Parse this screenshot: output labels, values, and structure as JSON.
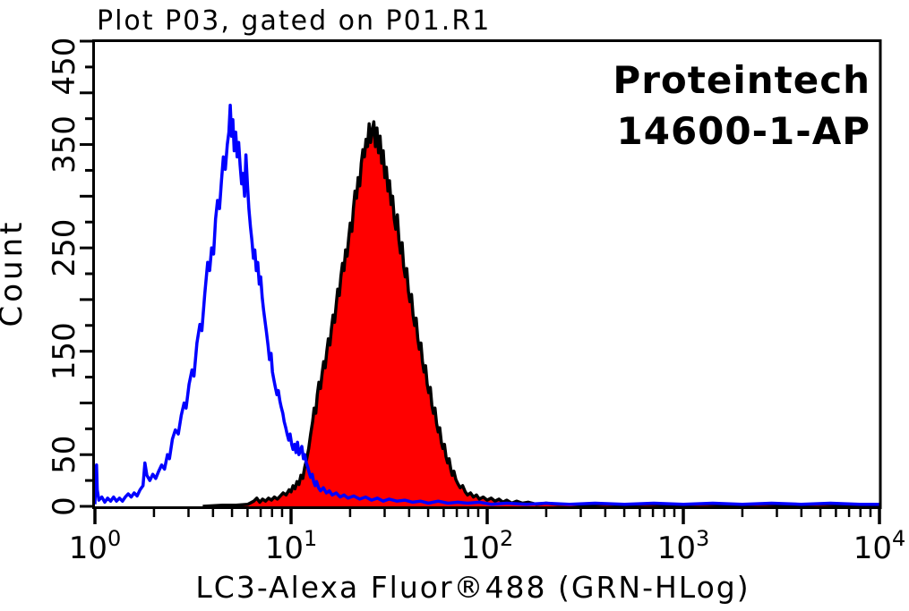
{
  "title": "Plot P03, gated on P01.R1",
  "annotation": {
    "line1": "Proteintech",
    "line2": "14600-1-AP"
  },
  "colors": {
    "text": "#000000",
    "frame": "#000000",
    "background": "#ffffff",
    "control_curve": "#0000ff",
    "sample_fill": "#ff0000",
    "sample_outline": "#000000"
  },
  "chart_data": {
    "type": "area",
    "title": "Plot P03, gated on P01.R1",
    "xlabel": "LC3-Alexa Fluor®488 (GRN-HLog)",
    "ylabel": "Count",
    "x_scale": "log10",
    "xlim": [
      1,
      10000
    ],
    "ylim": [
      0,
      450
    ],
    "x_decades": 4,
    "x_tick_base": "10",
    "x_tick_exponents": [
      0,
      1,
      2,
      3,
      4
    ],
    "y_minor_step": 25,
    "y_major_step": 50,
    "y_tick_labels": [
      0,
      50,
      150,
      250,
      350,
      450
    ],
    "grid": false,
    "legend": "none",
    "series": [
      {
        "name": "red filled histogram (14600-1-AP stained)",
        "style": "filled",
        "fill": "#ff0000",
        "color": "#000000",
        "points": [
          [
            0.55,
            0
          ],
          [
            0.65,
            1
          ],
          [
            0.72,
            1
          ],
          [
            0.78,
            2
          ],
          [
            0.81,
            5
          ],
          [
            0.825,
            8
          ],
          [
            0.84,
            4
          ],
          [
            0.855,
            7
          ],
          [
            0.87,
            5
          ],
          [
            0.885,
            8
          ],
          [
            0.9,
            6
          ],
          [
            0.915,
            9
          ],
          [
            0.93,
            7
          ],
          [
            0.945,
            10
          ],
          [
            0.96,
            13
          ],
          [
            0.975,
            11
          ],
          [
            0.99,
            16
          ],
          [
            1.0,
            14
          ],
          [
            1.01,
            20
          ],
          [
            1.02,
            17
          ],
          [
            1.03,
            24
          ],
          [
            1.04,
            21
          ],
          [
            1.05,
            30
          ],
          [
            1.06,
            27
          ],
          [
            1.07,
            38
          ],
          [
            1.08,
            46
          ],
          [
            1.09,
            56
          ],
          [
            1.1,
            70
          ],
          [
            1.11,
            82
          ],
          [
            1.118,
            95
          ],
          [
            1.126,
            90
          ],
          [
            1.134,
            108
          ],
          [
            1.142,
            120
          ],
          [
            1.15,
            114
          ],
          [
            1.158,
            128
          ],
          [
            1.166,
            140
          ],
          [
            1.174,
            134
          ],
          [
            1.182,
            150
          ],
          [
            1.19,
            162
          ],
          [
            1.198,
            156
          ],
          [
            1.206,
            172
          ],
          [
            1.214,
            185
          ],
          [
            1.222,
            178
          ],
          [
            1.23,
            195
          ],
          [
            1.238,
            210
          ],
          [
            1.246,
            204
          ],
          [
            1.254,
            222
          ],
          [
            1.262,
            235
          ],
          [
            1.27,
            228
          ],
          [
            1.278,
            248
          ],
          [
            1.286,
            242
          ],
          [
            1.294,
            260
          ],
          [
            1.302,
            274
          ],
          [
            1.31,
            266
          ],
          [
            1.318,
            288
          ],
          [
            1.326,
            305
          ],
          [
            1.334,
            298
          ],
          [
            1.342,
            318
          ],
          [
            1.35,
            310
          ],
          [
            1.358,
            332
          ],
          [
            1.366,
            345
          ],
          [
            1.374,
            338
          ],
          [
            1.382,
            355
          ],
          [
            1.39,
            348
          ],
          [
            1.398,
            370
          ],
          [
            1.406,
            352
          ],
          [
            1.414,
            364
          ],
          [
            1.422,
            372
          ],
          [
            1.43,
            348
          ],
          [
            1.438,
            366
          ],
          [
            1.446,
            342
          ],
          [
            1.454,
            358
          ],
          [
            1.462,
            332
          ],
          [
            1.47,
            344
          ],
          [
            1.478,
            318
          ],
          [
            1.486,
            328
          ],
          [
            1.494,
            305
          ],
          [
            1.502,
            315
          ],
          [
            1.51,
            292
          ],
          [
            1.518,
            300
          ],
          [
            1.526,
            278
          ],
          [
            1.534,
            268
          ],
          [
            1.542,
            282
          ],
          [
            1.55,
            258
          ],
          [
            1.558,
            245
          ],
          [
            1.566,
            255
          ],
          [
            1.574,
            232
          ],
          [
            1.582,
            222
          ],
          [
            1.59,
            230
          ],
          [
            1.598,
            208
          ],
          [
            1.606,
            198
          ],
          [
            1.614,
            205
          ],
          [
            1.622,
            185
          ],
          [
            1.63,
            175
          ],
          [
            1.638,
            182
          ],
          [
            1.646,
            162
          ],
          [
            1.654,
            152
          ],
          [
            1.662,
            158
          ],
          [
            1.67,
            140
          ],
          [
            1.678,
            130
          ],
          [
            1.686,
            136
          ],
          [
            1.694,
            118
          ],
          [
            1.702,
            110
          ],
          [
            1.71,
            115
          ],
          [
            1.718,
            98
          ],
          [
            1.726,
            90
          ],
          [
            1.734,
            95
          ],
          [
            1.742,
            80
          ],
          [
            1.75,
            72
          ],
          [
            1.758,
            76
          ],
          [
            1.766,
            62
          ],
          [
            1.774,
            56
          ],
          [
            1.782,
            60
          ],
          [
            1.79,
            48
          ],
          [
            1.798,
            42
          ],
          [
            1.806,
            46
          ],
          [
            1.814,
            36
          ],
          [
            1.822,
            30
          ],
          [
            1.83,
            34
          ],
          [
            1.84,
            26
          ],
          [
            1.85,
            22
          ],
          [
            1.862,
            18
          ],
          [
            1.875,
            20
          ],
          [
            1.888,
            14
          ],
          [
            1.9,
            11
          ],
          [
            1.915,
            13
          ],
          [
            1.93,
            9
          ],
          [
            1.945,
            11
          ],
          [
            1.96,
            7
          ],
          [
            1.98,
            9
          ],
          [
            2.0,
            6
          ],
          [
            2.02,
            8
          ],
          [
            2.04,
            5
          ],
          [
            2.06,
            7
          ],
          [
            2.08,
            4
          ],
          [
            2.1,
            6
          ],
          [
            2.125,
            3
          ],
          [
            2.15,
            5
          ],
          [
            2.18,
            3
          ],
          [
            2.21,
            4
          ],
          [
            2.25,
            2
          ],
          [
            2.3,
            3
          ],
          [
            2.36,
            2
          ],
          [
            2.43,
            2
          ],
          [
            2.5,
            1
          ],
          [
            2.6,
            2
          ],
          [
            2.7,
            1
          ],
          [
            2.82,
            2
          ],
          [
            2.95,
            1
          ],
          [
            3.1,
            2
          ],
          [
            3.25,
            1
          ],
          [
            3.4,
            2
          ],
          [
            3.55,
            1
          ],
          [
            3.7,
            2
          ],
          [
            3.85,
            1
          ],
          [
            4.0,
            1
          ]
        ]
      },
      {
        "name": "blue outline histogram (control)",
        "style": "line",
        "color": "#0000ff",
        "points": [
          [
            0.0,
            2
          ],
          [
            0.004,
            30
          ],
          [
            0.008,
            40
          ],
          [
            0.012,
            16
          ],
          [
            0.02,
            6
          ],
          [
            0.035,
            9
          ],
          [
            0.05,
            4
          ],
          [
            0.065,
            8
          ],
          [
            0.08,
            5
          ],
          [
            0.095,
            9
          ],
          [
            0.11,
            5
          ],
          [
            0.125,
            8
          ],
          [
            0.14,
            5
          ],
          [
            0.155,
            9
          ],
          [
            0.17,
            12
          ],
          [
            0.185,
            9
          ],
          [
            0.2,
            13
          ],
          [
            0.215,
            10
          ],
          [
            0.23,
            16
          ],
          [
            0.245,
            20
          ],
          [
            0.255,
            42
          ],
          [
            0.265,
            30
          ],
          [
            0.28,
            25
          ],
          [
            0.295,
            31
          ],
          [
            0.31,
            27
          ],
          [
            0.325,
            34
          ],
          [
            0.34,
            40
          ],
          [
            0.355,
            36
          ],
          [
            0.37,
            50
          ],
          [
            0.38,
            46
          ],
          [
            0.395,
            65
          ],
          [
            0.41,
            74
          ],
          [
            0.425,
            70
          ],
          [
            0.44,
            88
          ],
          [
            0.455,
            100
          ],
          [
            0.465,
            95
          ],
          [
            0.48,
            118
          ],
          [
            0.495,
            132
          ],
          [
            0.505,
            126
          ],
          [
            0.52,
            158
          ],
          [
            0.535,
            176
          ],
          [
            0.545,
            170
          ],
          [
            0.56,
            205
          ],
          [
            0.575,
            236
          ],
          [
            0.585,
            228
          ],
          [
            0.595,
            250
          ],
          [
            0.605,
            244
          ],
          [
            0.615,
            278
          ],
          [
            0.625,
            296
          ],
          [
            0.635,
            288
          ],
          [
            0.645,
            315
          ],
          [
            0.655,
            338
          ],
          [
            0.665,
            326
          ],
          [
            0.675,
            350
          ],
          [
            0.683,
            362
          ],
          [
            0.69,
            388
          ],
          [
            0.697,
            358
          ],
          [
            0.703,
            374
          ],
          [
            0.71,
            344
          ],
          [
            0.718,
            362
          ],
          [
            0.725,
            338
          ],
          [
            0.733,
            352
          ],
          [
            0.74,
            330
          ],
          [
            0.748,
            312
          ],
          [
            0.755,
            322
          ],
          [
            0.763,
            300
          ],
          [
            0.77,
            340
          ],
          [
            0.778,
            310
          ],
          [
            0.785,
            288
          ],
          [
            0.793,
            270
          ],
          [
            0.8,
            258
          ],
          [
            0.808,
            240
          ],
          [
            0.815,
            248
          ],
          [
            0.823,
            228
          ],
          [
            0.83,
            236
          ],
          [
            0.838,
            215
          ],
          [
            0.845,
            222
          ],
          [
            0.853,
            202
          ],
          [
            0.86,
            190
          ],
          [
            0.868,
            178
          ],
          [
            0.875,
            168
          ],
          [
            0.883,
            155
          ],
          [
            0.89,
            142
          ],
          [
            0.898,
            148
          ],
          [
            0.905,
            130
          ],
          [
            0.913,
            122
          ],
          [
            0.92,
            115
          ],
          [
            0.928,
            108
          ],
          [
            0.935,
            112
          ],
          [
            0.943,
            102
          ],
          [
            0.95,
            96
          ],
          [
            0.958,
            90
          ],
          [
            0.965,
            82
          ],
          [
            0.973,
            76
          ],
          [
            0.98,
            70
          ],
          [
            0.988,
            64
          ],
          [
            0.995,
            70
          ],
          [
            1.003,
            60
          ],
          [
            1.01,
            55
          ],
          [
            1.018,
            60
          ],
          [
            1.025,
            52
          ],
          [
            1.033,
            62
          ],
          [
            1.04,
            50
          ],
          [
            1.048,
            54
          ],
          [
            1.055,
            58
          ],
          [
            1.063,
            46
          ],
          [
            1.07,
            50
          ],
          [
            1.078,
            42
          ],
          [
            1.085,
            38
          ],
          [
            1.093,
            32
          ],
          [
            1.1,
            28
          ],
          [
            1.108,
            31
          ],
          [
            1.115,
            24
          ],
          [
            1.123,
            20
          ],
          [
            1.13,
            24
          ],
          [
            1.14,
            18
          ],
          [
            1.15,
            15
          ],
          [
            1.165,
            18
          ],
          [
            1.18,
            13
          ],
          [
            1.195,
            15
          ],
          [
            1.21,
            11
          ],
          [
            1.23,
            13
          ],
          [
            1.25,
            9
          ],
          [
            1.27,
            11
          ],
          [
            1.29,
            8
          ],
          [
            1.32,
            10
          ],
          [
            1.35,
            7
          ],
          [
            1.38,
            9
          ],
          [
            1.41,
            6
          ],
          [
            1.44,
            8
          ],
          [
            1.47,
            5
          ],
          [
            1.5,
            7
          ],
          [
            1.54,
            5
          ],
          [
            1.58,
            6
          ],
          [
            1.62,
            4
          ],
          [
            1.66,
            5
          ],
          [
            1.7,
            3
          ],
          [
            1.75,
            5
          ],
          [
            1.8,
            3
          ],
          [
            1.85,
            4
          ],
          [
            1.9,
            3
          ],
          [
            1.96,
            4
          ],
          [
            2.02,
            2
          ],
          [
            2.1,
            3
          ],
          [
            2.2,
            2
          ],
          [
            2.3,
            3
          ],
          [
            2.42,
            2
          ],
          [
            2.55,
            3
          ],
          [
            2.7,
            2
          ],
          [
            2.85,
            3
          ],
          [
            3.0,
            2
          ],
          [
            3.15,
            3
          ],
          [
            3.3,
            2
          ],
          [
            3.45,
            3
          ],
          [
            3.6,
            2
          ],
          [
            3.75,
            3
          ],
          [
            3.9,
            2
          ],
          [
            4.0,
            2
          ]
        ]
      }
    ]
  }
}
